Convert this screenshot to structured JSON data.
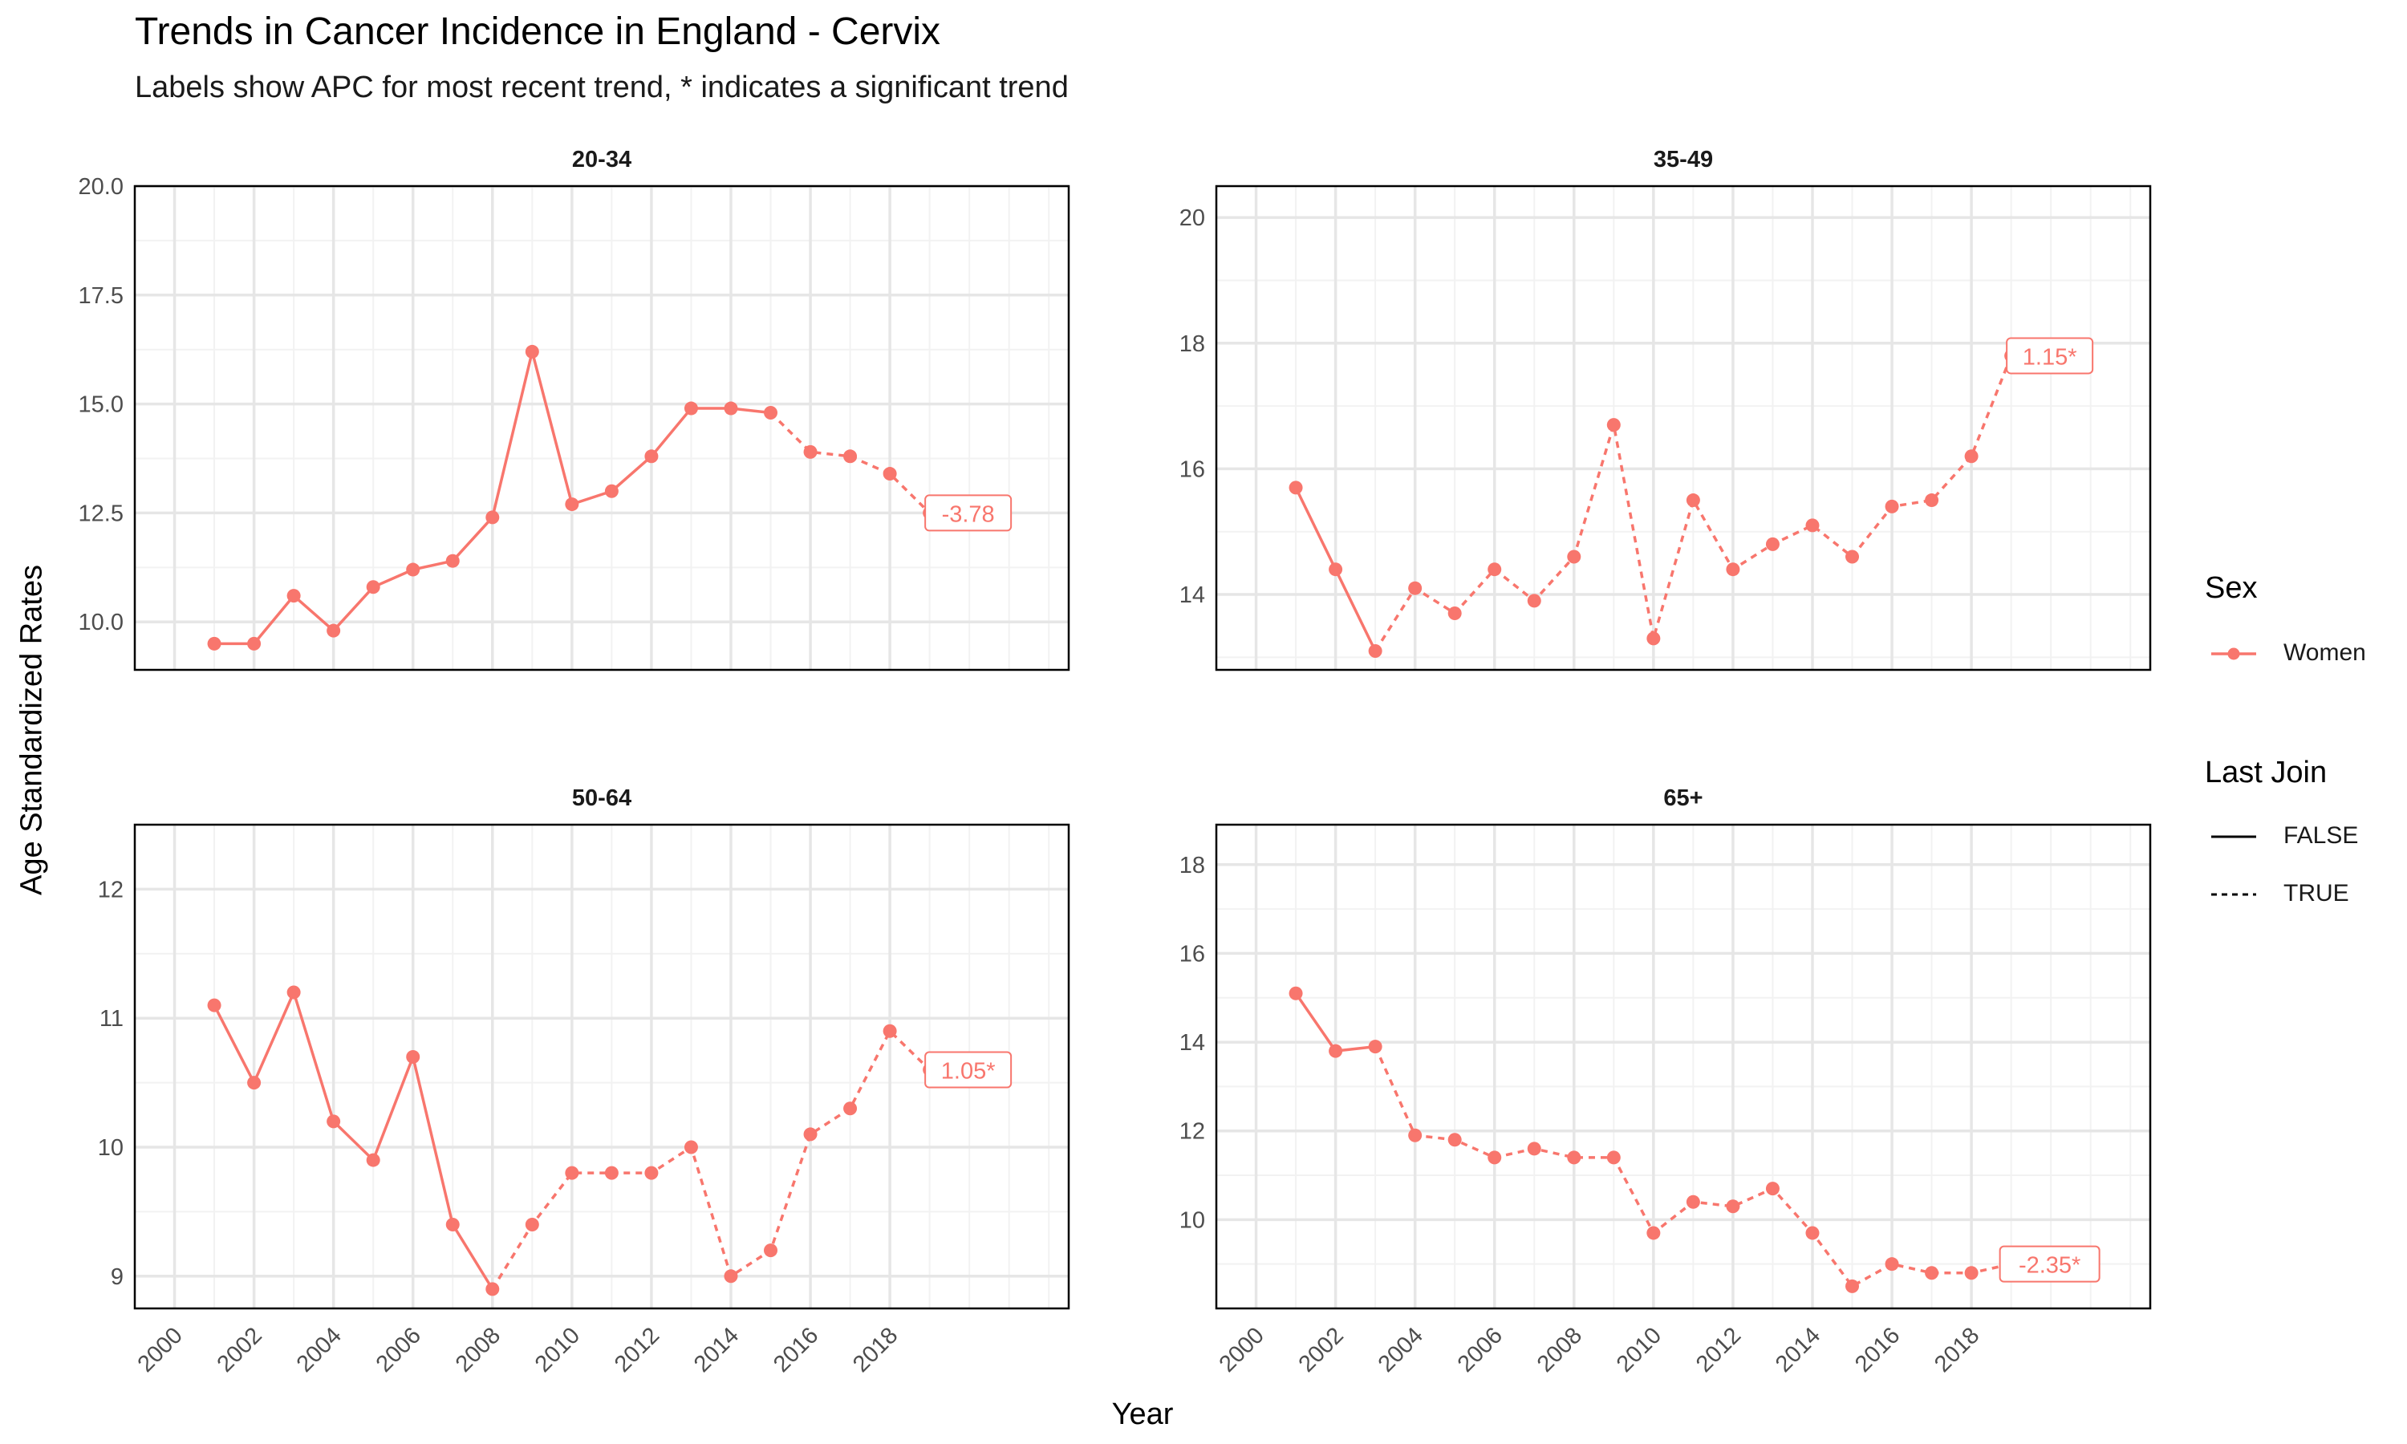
{
  "chart_data": {
    "type": "line",
    "title": "Trends in Cancer Incidence in England - Cervix",
    "subtitle": "Labels show APC for most recent trend, * indicates a significant trend",
    "xlabel": "Year",
    "ylabel": "Age Standardized Rates",
    "x_ticks": [
      "2000",
      "2002",
      "2004",
      "2006",
      "2008",
      "2010",
      "2012",
      "2014",
      "2016",
      "2018"
    ],
    "xlim": [
      1999,
      2022.5
    ],
    "grid": true,
    "color": "#F8766D",
    "legend": {
      "position": "right",
      "sex_title": "Sex",
      "sex_items": [
        "Women"
      ],
      "join_title": "Last Join",
      "join_items": [
        {
          "label": "FALSE",
          "style": "solid"
        },
        {
          "label": "TRUE",
          "style": "dashed"
        }
      ]
    },
    "panels": [
      {
        "name": "20-34",
        "ylim": [
          8.9,
          20
        ],
        "y_ticks": [
          10.0,
          12.5,
          15.0,
          17.5,
          20.0
        ],
        "y_tick_labels": [
          "10.0",
          "12.5",
          "15.0",
          "17.5",
          "20.0"
        ],
        "x": [
          2001,
          2002,
          2003,
          2004,
          2005,
          2006,
          2007,
          2008,
          2009,
          2010,
          2011,
          2012,
          2013,
          2014,
          2015,
          2016,
          2017,
          2018,
          2019
        ],
        "values": [
          9.5,
          9.5,
          10.6,
          9.8,
          10.8,
          11.2,
          11.4,
          12.4,
          16.2,
          12.7,
          13.0,
          13.8,
          14.9,
          14.9,
          14.8,
          13.9,
          13.8,
          13.4,
          12.5
        ],
        "last_join_year": 2015,
        "apc_label": "-3.78"
      },
      {
        "name": "35-49",
        "ylim": [
          12.8,
          20.5
        ],
        "y_ticks": [
          14,
          16,
          18,
          20
        ],
        "y_tick_labels": [
          "14",
          "16",
          "18",
          "20"
        ],
        "x": [
          2001,
          2002,
          2003,
          2004,
          2005,
          2006,
          2007,
          2008,
          2009,
          2010,
          2011,
          2012,
          2013,
          2014,
          2015,
          2016,
          2017,
          2018,
          2019
        ],
        "values": [
          15.7,
          14.4,
          13.1,
          14.1,
          13.7,
          14.4,
          13.9,
          14.6,
          16.7,
          13.3,
          15.5,
          14.4,
          14.8,
          15.1,
          14.6,
          15.4,
          15.5,
          16.2,
          17.8
        ],
        "last_join_year": 2003,
        "apc_label": "1.15*"
      },
      {
        "name": "50-64",
        "ylim": [
          8.75,
          12.5
        ],
        "y_ticks": [
          9,
          10,
          11,
          12
        ],
        "y_tick_labels": [
          "9",
          "10",
          "11",
          "12"
        ],
        "x": [
          2001,
          2002,
          2003,
          2004,
          2005,
          2006,
          2007,
          2008,
          2009,
          2010,
          2011,
          2012,
          2013,
          2014,
          2015,
          2016,
          2017,
          2018,
          2019
        ],
        "values": [
          11.1,
          10.5,
          11.2,
          10.2,
          9.9,
          10.7,
          9.4,
          8.9,
          9.4,
          9.8,
          9.8,
          9.8,
          10.0,
          9.0,
          9.2,
          10.1,
          10.3,
          10.9,
          10.6
        ],
        "last_join_year": 2008,
        "apc_label": "1.05*"
      },
      {
        "name": "65+",
        "ylim": [
          8.0,
          18.9
        ],
        "y_ticks": [
          10,
          12,
          14,
          16,
          18
        ],
        "y_tick_labels": [
          "10",
          "12",
          "14",
          "16",
          "18"
        ],
        "x": [
          2001,
          2002,
          2003,
          2004,
          2005,
          2006,
          2007,
          2008,
          2009,
          2010,
          2011,
          2012,
          2013,
          2014,
          2015,
          2016,
          2017,
          2018,
          2019
        ],
        "values": [
          15.1,
          13.8,
          13.9,
          11.9,
          11.8,
          11.4,
          11.6,
          11.4,
          11.4,
          9.7,
          10.4,
          10.3,
          10.7,
          9.7,
          8.5,
          9.0,
          8.8,
          8.8,
          9.0
        ],
        "last_join_year": 2003,
        "apc_label": "-2.35*"
      }
    ]
  }
}
